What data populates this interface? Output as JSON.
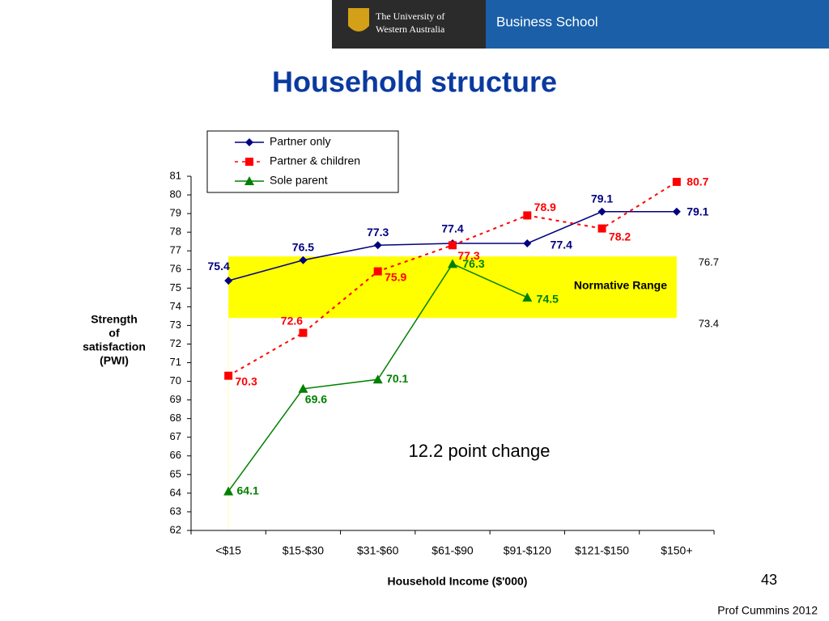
{
  "header": {
    "university": [
      "The University of",
      "Western Australia"
    ],
    "school": "Business School"
  },
  "chart_data": {
    "type": "line",
    "title": "Household structure",
    "categories": [
      "<$15",
      "$15-$30",
      "$31-$60",
      "$61-$90",
      "$91-$120",
      "$121-$150",
      "$150+"
    ],
    "series": [
      {
        "name": "Partner only",
        "color": "#000080",
        "marker": "diamond",
        "dashed": false,
        "values": [
          75.4,
          76.5,
          77.3,
          77.4,
          77.4,
          79.1,
          79.1
        ]
      },
      {
        "name": "Partner & children",
        "color": "#ff0000",
        "marker": "square",
        "dashed": true,
        "values": [
          70.3,
          72.6,
          75.9,
          77.3,
          78.9,
          78.2,
          80.7
        ]
      },
      {
        "name": "Sole parent",
        "color": "#008000",
        "marker": "triangle",
        "dashed": false,
        "values": [
          64.1,
          69.6,
          70.1,
          76.3,
          74.5,
          null,
          null
        ]
      }
    ],
    "ylim": [
      62,
      81
    ],
    "yticks": [
      62,
      63,
      64,
      65,
      66,
      67,
      68,
      69,
      70,
      71,
      72,
      73,
      74,
      75,
      76,
      77,
      78,
      79,
      80,
      81
    ],
    "ylabel": [
      "Strength",
      "of",
      "satisfaction",
      "(PWI)"
    ],
    "xlabel": "Household Income ($'000)",
    "normative_range": {
      "label": "Normative Range",
      "low": 73.4,
      "high": 76.7,
      "color": "#ffff00"
    },
    "annotation": "12.2 point change"
  },
  "footer": {
    "page": "43",
    "credit": "Prof Cummins 2012"
  }
}
